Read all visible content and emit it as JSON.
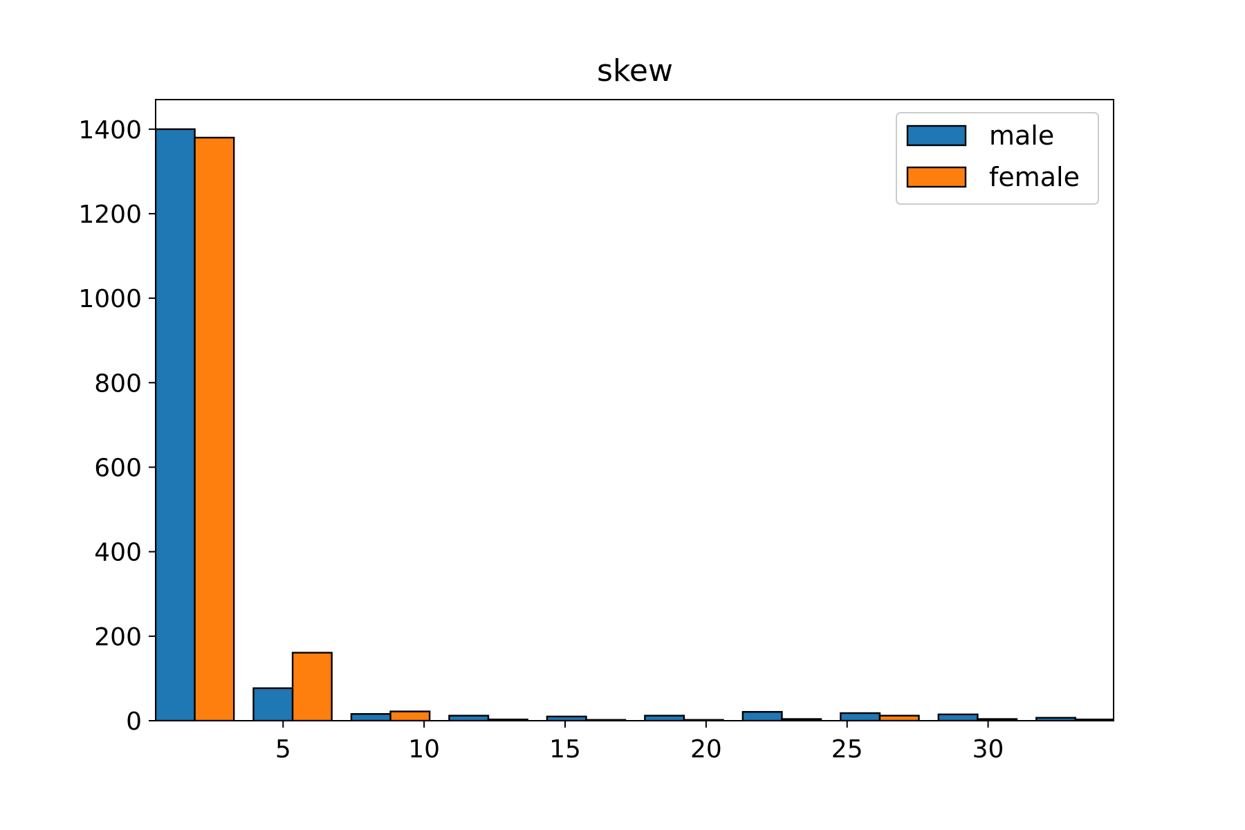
{
  "chart_data": {
    "type": "bar",
    "title": "skew",
    "xlabel": "",
    "ylabel": "",
    "xlim": [
      0.48,
      34.45
    ],
    "ylim": [
      0,
      1470
    ],
    "bin_edges": [
      0.48,
      3.95,
      7.42,
      10.89,
      14.36,
      17.83,
      21.3,
      24.77,
      28.24,
      31.71,
      35.18
    ],
    "grid": false,
    "legend": "top-right",
    "x_ticks": [
      {
        "value": 5,
        "label": "5"
      },
      {
        "value": 10,
        "label": "10"
      },
      {
        "value": 15,
        "label": "15"
      },
      {
        "value": 20,
        "label": "20"
      },
      {
        "value": 25,
        "label": "25"
      },
      {
        "value": 30,
        "label": "30"
      }
    ],
    "y_ticks": [
      {
        "value": 0,
        "label": "0"
      },
      {
        "value": 200,
        "label": "200"
      },
      {
        "value": 400,
        "label": "400"
      },
      {
        "value": 600,
        "label": "600"
      },
      {
        "value": 800,
        "label": "800"
      },
      {
        "value": 1000,
        "label": "1000"
      },
      {
        "value": 1200,
        "label": "1200"
      },
      {
        "value": 1400,
        "label": "1400"
      }
    ],
    "series": [
      {
        "name": "male",
        "color": "#1f77b4",
        "values": [
          1400,
          77,
          16,
          12,
          10,
          12,
          21,
          18,
          15,
          7
        ]
      },
      {
        "name": "female",
        "color": "#ff7f0e",
        "values": [
          1380,
          161,
          22,
          3,
          2,
          2,
          4,
          12,
          4,
          3
        ]
      }
    ]
  }
}
